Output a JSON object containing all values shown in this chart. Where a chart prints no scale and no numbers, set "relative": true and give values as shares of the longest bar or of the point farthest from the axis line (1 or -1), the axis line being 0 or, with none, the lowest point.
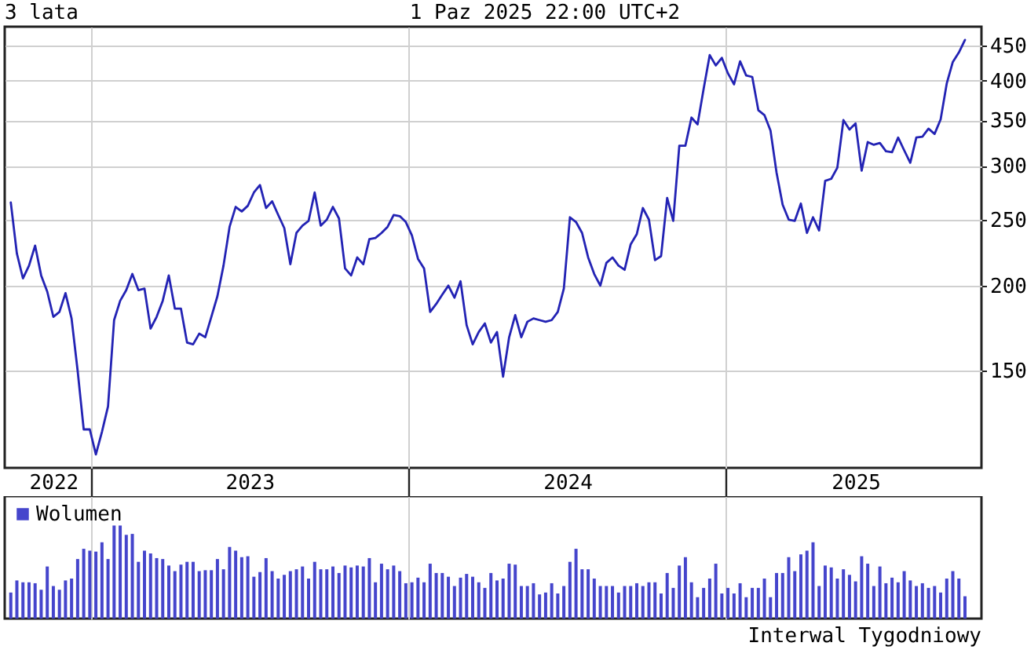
{
  "chart_data": [
    {
      "type": "line",
      "title": "3 lata",
      "subtitle": "1 Paz 2025 22:00 UTC+2",
      "x": [
        "2022-09-30",
        "2022-10-07",
        "2022-10-14",
        "2022-10-21",
        "2022-10-28",
        "2022-11-04",
        "2022-11-11",
        "2022-11-18",
        "2022-11-25",
        "2022-12-02",
        "2022-12-09",
        "2022-12-16",
        "2022-12-23",
        "2022-12-30",
        "2023-01-06",
        "2023-01-13",
        "2023-01-20",
        "2023-01-27",
        "2023-02-03",
        "2023-02-10",
        "2023-02-17",
        "2023-02-24",
        "2023-03-03",
        "2023-03-10",
        "2023-03-17",
        "2023-03-24",
        "2023-03-31",
        "2023-04-07",
        "2023-04-14",
        "2023-04-21",
        "2023-04-28",
        "2023-05-05",
        "2023-05-12",
        "2023-05-19",
        "2023-05-26",
        "2023-06-02",
        "2023-06-09",
        "2023-06-16",
        "2023-06-23",
        "2023-06-30",
        "2023-07-07",
        "2023-07-14",
        "2023-07-21",
        "2023-07-28",
        "2023-08-04",
        "2023-08-11",
        "2023-08-18",
        "2023-08-25",
        "2023-09-01",
        "2023-09-08",
        "2023-09-15",
        "2023-09-22",
        "2023-09-29",
        "2023-10-06",
        "2023-10-13",
        "2023-10-20",
        "2023-10-27",
        "2023-11-03",
        "2023-11-10",
        "2023-11-17",
        "2023-11-24",
        "2023-12-01",
        "2023-12-08",
        "2023-12-15",
        "2023-12-22",
        "2023-12-29",
        "2024-01-05",
        "2024-01-12",
        "2024-01-19",
        "2024-01-26",
        "2024-02-02",
        "2024-02-09",
        "2024-02-16",
        "2024-02-23",
        "2024-03-01",
        "2024-03-08",
        "2024-03-15",
        "2024-03-22",
        "2024-03-29",
        "2024-04-05",
        "2024-04-12",
        "2024-04-19",
        "2024-04-26",
        "2024-05-03",
        "2024-05-10",
        "2024-05-17",
        "2024-05-24",
        "2024-05-31",
        "2024-06-07",
        "2024-06-14",
        "2024-06-21",
        "2024-06-28",
        "2024-07-05",
        "2024-07-12",
        "2024-07-19",
        "2024-07-26",
        "2024-08-02",
        "2024-08-09",
        "2024-08-16",
        "2024-08-23",
        "2024-08-30",
        "2024-09-06",
        "2024-09-13",
        "2024-09-20",
        "2024-09-27",
        "2024-10-04",
        "2024-10-11",
        "2024-10-18",
        "2024-10-25",
        "2024-11-01",
        "2024-11-08",
        "2024-11-15",
        "2024-11-22",
        "2024-11-29",
        "2024-12-06",
        "2024-12-13",
        "2024-12-20",
        "2024-12-27",
        "2025-01-03",
        "2025-01-10",
        "2025-01-17",
        "2025-01-24",
        "2025-01-31",
        "2025-02-07",
        "2025-02-14",
        "2025-02-21",
        "2025-02-28",
        "2025-03-07",
        "2025-03-14",
        "2025-03-21",
        "2025-03-28",
        "2025-04-04",
        "2025-04-11",
        "2025-04-18",
        "2025-04-25",
        "2025-05-02",
        "2025-05-09",
        "2025-05-16",
        "2025-05-23",
        "2025-05-30",
        "2025-06-06",
        "2025-06-13",
        "2025-06-20",
        "2025-06-27",
        "2025-07-04",
        "2025-07-11",
        "2025-07-18",
        "2025-07-25",
        "2025-08-01",
        "2025-08-08",
        "2025-08-15",
        "2025-08-22",
        "2025-08-29",
        "2025-09-05",
        "2025-09-12",
        "2025-09-19",
        "2025-09-26",
        "2025-10-03"
      ],
      "values": [
        265,
        223,
        205,
        214,
        229,
        207,
        196,
        180,
        183,
        195,
        179,
        150,
        123,
        123,
        113,
        122,
        133,
        178,
        190,
        197,
        208,
        197,
        198,
        173,
        180,
        190,
        207,
        185,
        185,
        165,
        164,
        170,
        168,
        180,
        193,
        214,
        244,
        261,
        257,
        262,
        274,
        281,
        260,
        266,
        254,
        243,
        215,
        239,
        245,
        249,
        274,
        245,
        250,
        261,
        251,
        212,
        207,
        220,
        215,
        234,
        235,
        239,
        244,
        254,
        253,
        248,
        237,
        219,
        212,
        183,
        188,
        194,
        200,
        192,
        203,
        175,
        164,
        171,
        176,
        165,
        171,
        147,
        168,
        181,
        168,
        177,
        179,
        178,
        177,
        178,
        183,
        198,
        252,
        248,
        239,
        220,
        208,
        200,
        216,
        220,
        214,
        211,
        230,
        238,
        260,
        250,
        218,
        221,
        269,
        249,
        321,
        321,
        353,
        345,
        389,
        436,
        421,
        432,
        410,
        395,
        427,
        407,
        405,
        362,
        356,
        338,
        293,
        263,
        250,
        249,
        264,
        239,
        252,
        241,
        285,
        287,
        298,
        350,
        339,
        346,
        295,
        325,
        322,
        324,
        315,
        314,
        330,
        316,
        303,
        330,
        331,
        340,
        334,
        351,
        396,
        426,
        440,
        459
      ],
      "color": "#2323b4",
      "xlim": [
        "2022-09-23",
        "2025-10-22"
      ],
      "xticks": [
        {
          "value": "2022-11-18",
          "label": "2022"
        },
        {
          "value": "2023-01-01",
          "label": null
        },
        {
          "value": "2023-07-02",
          "label": "2023"
        },
        {
          "value": "2024-01-01",
          "label": null
        },
        {
          "value": "2024-07-02",
          "label": "2024"
        },
        {
          "value": "2025-01-01",
          "label": null
        },
        {
          "value": "2025-05-30",
          "label": "2025"
        }
      ],
      "ylim": [
        108,
        480
      ],
      "yticks": [
        150,
        200,
        250,
        300,
        350,
        400,
        450
      ],
      "log": true,
      "grid": true
    },
    {
      "type": "bar",
      "relative": true,
      "x": [
        "2022-09-30",
        "2022-10-07",
        "2022-10-14",
        "2022-10-21",
        "2022-10-28",
        "2022-11-04",
        "2022-11-11",
        "2022-11-18",
        "2022-11-25",
        "2022-12-02",
        "2022-12-09",
        "2022-12-16",
        "2022-12-23",
        "2022-12-30",
        "2023-01-06",
        "2023-01-13",
        "2023-01-20",
        "2023-01-27",
        "2023-02-03",
        "2023-02-10",
        "2023-02-17",
        "2023-02-24",
        "2023-03-03",
        "2023-03-10",
        "2023-03-17",
        "2023-03-24",
        "2023-03-31",
        "2023-04-07",
        "2023-04-14",
        "2023-04-21",
        "2023-04-28",
        "2023-05-05",
        "2023-05-12",
        "2023-05-19",
        "2023-05-26",
        "2023-06-02",
        "2023-06-09",
        "2023-06-16",
        "2023-06-23",
        "2023-06-30",
        "2023-07-07",
        "2023-07-14",
        "2023-07-21",
        "2023-07-28",
        "2023-08-04",
        "2023-08-11",
        "2023-08-18",
        "2023-08-25",
        "2023-09-01",
        "2023-09-08",
        "2023-09-15",
        "2023-09-22",
        "2023-09-29",
        "2023-10-06",
        "2023-10-13",
        "2023-10-20",
        "2023-10-27",
        "2023-11-03",
        "2023-11-10",
        "2023-11-17",
        "2023-11-24",
        "2023-12-01",
        "2023-12-08",
        "2023-12-15",
        "2023-12-22",
        "2023-12-29",
        "2024-01-05",
        "2024-01-12",
        "2024-01-19",
        "2024-01-26",
        "2024-02-02",
        "2024-02-09",
        "2024-02-16",
        "2024-02-23",
        "2024-03-01",
        "2024-03-08",
        "2024-03-15",
        "2024-03-22",
        "2024-03-29",
        "2024-04-05",
        "2024-04-12",
        "2024-04-19",
        "2024-04-26",
        "2024-05-03",
        "2024-05-10",
        "2024-05-17",
        "2024-05-24",
        "2024-05-31",
        "2024-06-07",
        "2024-06-14",
        "2024-06-21",
        "2024-06-28",
        "2024-07-05",
        "2024-07-12",
        "2024-07-19",
        "2024-07-26",
        "2024-08-02",
        "2024-08-09",
        "2024-08-16",
        "2024-08-23",
        "2024-08-30",
        "2024-09-06",
        "2024-09-13",
        "2024-09-20",
        "2024-09-27",
        "2024-10-04",
        "2024-10-11",
        "2024-10-18",
        "2024-10-25",
        "2024-11-01",
        "2024-11-08",
        "2024-11-15",
        "2024-11-22",
        "2024-11-29",
        "2024-12-06",
        "2024-12-13",
        "2024-12-20",
        "2024-12-27",
        "2025-01-03",
        "2025-01-10",
        "2025-01-17",
        "2025-01-24",
        "2025-01-31",
        "2025-02-07",
        "2025-02-14",
        "2025-02-21",
        "2025-02-28",
        "2025-03-07",
        "2025-03-14",
        "2025-03-21",
        "2025-03-28",
        "2025-04-04",
        "2025-04-11",
        "2025-04-18",
        "2025-04-25",
        "2025-05-02",
        "2025-05-09",
        "2025-05-16",
        "2025-05-23",
        "2025-05-30",
        "2025-06-06",
        "2025-06-13",
        "2025-06-20",
        "2025-06-27",
        "2025-07-04",
        "2025-07-11",
        "2025-07-18",
        "2025-07-25",
        "2025-08-01",
        "2025-08-08",
        "2025-08-15",
        "2025-08-22",
        "2025-08-29",
        "2025-09-05",
        "2025-09-12",
        "2025-09-19",
        "2025-09-26",
        "2025-10-03"
      ],
      "series": [
        {
          "name": "Wolumen",
          "color": "#4545cc",
          "values": [
            0.28,
            0.41,
            0.39,
            0.39,
            0.38,
            0.31,
            0.56,
            0.35,
            0.31,
            0.41,
            0.43,
            0.64,
            0.75,
            0.73,
            0.72,
            0.82,
            0.64,
            1,
            1,
            0.9,
            0.91,
            0.61,
            0.73,
            0.7,
            0.65,
            0.64,
            0.57,
            0.51,
            0.58,
            0.61,
            0.61,
            0.51,
            0.52,
            0.52,
            0.64,
            0.53,
            0.77,
            0.73,
            0.66,
            0.67,
            0.45,
            0.5,
            0.65,
            0.51,
            0.43,
            0.47,
            0.51,
            0.53,
            0.56,
            0.43,
            0.61,
            0.53,
            0.53,
            0.56,
            0.49,
            0.57,
            0.55,
            0.57,
            0.56,
            0.65,
            0.39,
            0.59,
            0.53,
            0.57,
            0.51,
            0.38,
            0.39,
            0.44,
            0.39,
            0.59,
            0.49,
            0.49,
            0.45,
            0.35,
            0.44,
            0.48,
            0.45,
            0.39,
            0.33,
            0.49,
            0.41,
            0.43,
            0.59,
            0.58,
            0.35,
            0.35,
            0.38,
            0.26,
            0.28,
            0.38,
            0.27,
            0.35,
            0.61,
            0.75,
            0.53,
            0.53,
            0.43,
            0.35,
            0.35,
            0.35,
            0.28,
            0.35,
            0.35,
            0.38,
            0.35,
            0.39,
            0.39,
            0.27,
            0.49,
            0.33,
            0.57,
            0.66,
            0.39,
            0.23,
            0.33,
            0.43,
            0.59,
            0.27,
            0.33,
            0.27,
            0.38,
            0.23,
            0.33,
            0.33,
            0.43,
            0.23,
            0.49,
            0.49,
            0.66,
            0.51,
            0.69,
            0.73,
            0.82,
            0.35,
            0.57,
            0.55,
            0.43,
            0.53,
            0.47,
            0.4,
            0.67,
            0.59,
            0.35,
            0.56,
            0.38,
            0.44,
            0.39,
            0.51,
            0.41,
            0.35,
            0.38,
            0.33,
            0.35,
            0.28,
            0.43,
            0.51,
            0.43,
            0.24
          ]
        }
      ],
      "xlim": [
        "2022-09-23",
        "2025-10-22"
      ],
      "xticks": [
        {
          "value": "2023-01-01",
          "label": null
        },
        {
          "value": "2024-01-01",
          "label": null
        },
        {
          "value": "2025-01-01",
          "label": null
        }
      ],
      "tick_labels": false,
      "grid": "x",
      "legend": "top left",
      "annotations": [
        "Interwal Tygodniowy"
      ]
    }
  ]
}
